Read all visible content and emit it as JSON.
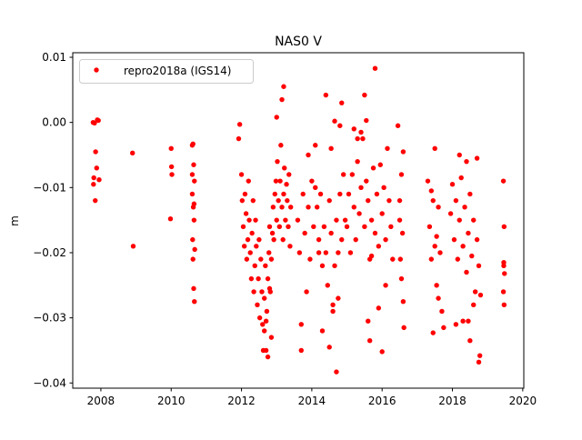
{
  "chart_data": {
    "type": "scatter",
    "title": "NAS0 V",
    "xlabel": "",
    "ylabel": "m",
    "xlim": [
      2007.2,
      2020.03
    ],
    "ylim": [
      -0.0408,
      0.0107
    ],
    "xticks": [
      2008,
      2010,
      2012,
      2014,
      2016,
      2018,
      2020
    ],
    "xtick_labels": [
      "2008",
      "2010",
      "2012",
      "2014",
      "2016",
      "2018",
      "2020"
    ],
    "yticks": [
      0.01,
      0.0,
      -0.01,
      -0.02,
      -0.03,
      -0.04
    ],
    "ytick_labels": [
      "0.01",
      "0.00",
      "−0.01",
      "−0.02",
      "−0.03",
      "−0.04"
    ],
    "grid": false,
    "legend": {
      "placement": "top-left",
      "entries": [
        "repro2018a (IGS14)"
      ]
    },
    "color": "#ff0000",
    "series": [
      {
        "name": "repro2018a (IGS14)",
        "x": [
          2007.78,
          2007.82,
          2007.9,
          2007.93,
          2007.85,
          2007.88,
          2007.8,
          2007.79,
          2007.95,
          2007.84,
          2008.9,
          2008.92,
          2010.0,
          2010.01,
          2010.02,
          2009.98,
          2010.6,
          2010.62,
          2010.64,
          2010.66,
          2010.6,
          2010.63,
          2010.65,
          2010.61,
          2010.67,
          2010.62,
          2010.64,
          2010.66,
          2010.6,
          2010.65,
          2011.92,
          2011.95,
          2012.0,
          2012.02,
          2012.05,
          2012.08,
          2012.1,
          2012.13,
          2012.15,
          2012.18,
          2012.2,
          2012.22,
          2012.25,
          2012.28,
          2012.3,
          2012.33,
          2012.35,
          2012.38,
          2012.4,
          2012.42,
          2012.45,
          2012.48,
          2012.5,
          2012.52,
          2012.55,
          2012.58,
          2012.6,
          2012.62,
          2012.65,
          2012.68,
          2012.7,
          2012.72,
          2012.75,
          2012.78,
          2012.8,
          2012.82,
          2012.85,
          2012.88,
          2012.9,
          2012.92,
          2012.95,
          2012.98,
          2013.0,
          2013.02,
          2013.05,
          2013.08,
          2013.1,
          2013.12,
          2013.15,
          2013.18,
          2013.2,
          2013.22,
          2013.25,
          2013.28,
          2013.3,
          2013.33,
          2013.35,
          2013.38,
          2013.4,
          2012.65,
          2012.7,
          2012.75,
          2012.8,
          2012.85,
          2013.0,
          2013.15,
          2013.2,
          2013.6,
          2013.65,
          2013.7,
          2013.75,
          2013.8,
          2013.85,
          2013.9,
          2013.95,
          2014.0,
          2014.05,
          2014.1,
          2014.15,
          2014.2,
          2014.25,
          2014.3,
          2014.35,
          2014.4,
          2014.45,
          2014.5,
          2014.55,
          2014.6,
          2014.65,
          2014.7,
          2014.75,
          2014.8,
          2014.85,
          2014.9,
          2014.95,
          2014.3,
          2014.5,
          2014.6,
          2014.7,
          2014.4,
          2014.55,
          2014.65,
          2014.75,
          2013.9,
          2014.1,
          2014.2,
          2013.7,
          2014.8,
          2014.85,
          2015.0,
          2015.05,
          2015.1,
          2015.15,
          2015.2,
          2015.25,
          2015.3,
          2015.35,
          2015.4,
          2015.45,
          2015.5,
          2015.55,
          2015.6,
          2015.65,
          2015.7,
          2015.75,
          2015.8,
          2015.85,
          2015.9,
          2015.95,
          2016.0,
          2016.05,
          2016.1,
          2016.15,
          2016.2,
          2016.25,
          2016.3,
          2015.5,
          2015.55,
          2015.6,
          2015.65,
          2015.3,
          2015.4,
          2015.8,
          2016.0,
          2015.2,
          2015.9,
          2015.7,
          2016.1,
          2016.45,
          2016.5,
          2016.52,
          2016.55,
          2016.58,
          2016.6,
          2016.62,
          2016.5,
          2016.55,
          2016.6,
          2017.3,
          2017.35,
          2017.4,
          2017.45,
          2017.5,
          2017.55,
          2017.6,
          2017.65,
          2017.7,
          2017.75,
          2017.4,
          2017.5,
          2017.6,
          2017.45,
          2017.55,
          2017.95,
          2018.0,
          2018.05,
          2018.1,
          2018.15,
          2018.2,
          2018.25,
          2018.3,
          2018.35,
          2018.4,
          2018.45,
          2018.5,
          2018.55,
          2018.6,
          2018.65,
          2018.7,
          2018.75,
          2018.8,
          2018.2,
          2018.3,
          2018.4,
          2018.5,
          2018.6,
          2018.1,
          2018.7,
          2018.45,
          2018.75,
          2018.78,
          2019.45,
          2019.47,
          2019.46,
          2019.48,
          2019.45,
          2019.47,
          2019.46
        ],
        "y": [
          0.0,
          -0.0001,
          0.0004,
          0.0003,
          -0.0045,
          -0.007,
          -0.0085,
          -0.0095,
          -0.0088,
          -0.012,
          -0.0047,
          -0.019,
          -0.004,
          -0.0068,
          -0.008,
          -0.0148,
          -0.0035,
          -0.0033,
          -0.0065,
          -0.009,
          -0.011,
          -0.013,
          -0.015,
          -0.018,
          -0.0195,
          -0.021,
          -0.0255,
          -0.0275,
          -0.008,
          -0.0125,
          -0.0025,
          -0.0003,
          -0.008,
          -0.012,
          -0.016,
          -0.019,
          -0.011,
          -0.014,
          -0.021,
          -0.018,
          -0.009,
          -0.015,
          -0.02,
          -0.024,
          -0.017,
          -0.012,
          -0.026,
          -0.022,
          -0.015,
          -0.019,
          -0.028,
          -0.024,
          -0.018,
          -0.03,
          -0.021,
          -0.026,
          -0.031,
          -0.035,
          -0.027,
          -0.022,
          -0.035,
          -0.029,
          -0.024,
          -0.02,
          -0.016,
          -0.026,
          -0.021,
          -0.017,
          -0.013,
          -0.018,
          -0.011,
          -0.009,
          -0.015,
          -0.006,
          -0.012,
          -0.016,
          -0.009,
          -0.0035,
          -0.013,
          -0.018,
          -0.011,
          -0.007,
          -0.015,
          -0.0095,
          -0.012,
          -0.016,
          -0.008,
          -0.019,
          -0.013,
          -0.032,
          -0.0305,
          -0.036,
          -0.0255,
          -0.033,
          0.0008,
          0.0035,
          0.0055,
          -0.015,
          -0.02,
          -0.031,
          -0.011,
          -0.017,
          -0.026,
          -0.013,
          -0.021,
          -0.009,
          -0.016,
          -0.0035,
          -0.013,
          -0.018,
          -0.011,
          -0.022,
          -0.016,
          -0.02,
          -0.025,
          -0.012,
          -0.017,
          -0.028,
          -0.022,
          -0.015,
          -0.02,
          -0.011,
          -0.018,
          -0.008,
          -0.015,
          -0.032,
          -0.0345,
          -0.029,
          -0.0383,
          0.0042,
          -0.004,
          0.0002,
          -0.027,
          -0.005,
          -0.01,
          -0.02,
          -0.035,
          -0.0005,
          0.003,
          -0.016,
          -0.011,
          -0.02,
          -0.008,
          -0.013,
          -0.018,
          -0.006,
          -0.014,
          -0.01,
          -0.0025,
          -0.016,
          -0.009,
          -0.012,
          -0.021,
          -0.015,
          -0.007,
          -0.017,
          -0.011,
          -0.019,
          -0.0065,
          -0.014,
          -0.01,
          -0.018,
          -0.004,
          -0.012,
          -0.016,
          -0.021,
          0.0042,
          0.0003,
          -0.0305,
          -0.0335,
          -0.0025,
          -0.0015,
          0.0083,
          -0.0352,
          -0.001,
          -0.0285,
          -0.0205,
          -0.025,
          -0.0005,
          -0.012,
          -0.021,
          -0.008,
          -0.017,
          -0.0275,
          -0.0315,
          -0.015,
          -0.024,
          -0.0045,
          -0.009,
          -0.016,
          -0.021,
          -0.012,
          -0.019,
          -0.025,
          -0.013,
          -0.02,
          -0.029,
          -0.0315,
          -0.0105,
          -0.004,
          -0.027,
          -0.0323,
          -0.0175,
          -0.014,
          -0.0095,
          -0.018,
          -0.012,
          -0.021,
          -0.015,
          -0.0085,
          -0.019,
          -0.013,
          -0.023,
          -0.017,
          -0.011,
          -0.0205,
          -0.015,
          -0.026,
          -0.018,
          -0.022,
          -0.0265,
          -0.005,
          -0.0305,
          -0.006,
          -0.0335,
          -0.028,
          -0.031,
          -0.0055,
          -0.0305,
          -0.0368,
          -0.0358,
          -0.009,
          -0.016,
          -0.0215,
          -0.0232,
          -0.026,
          -0.028,
          -0.022
        ]
      }
    ]
  }
}
